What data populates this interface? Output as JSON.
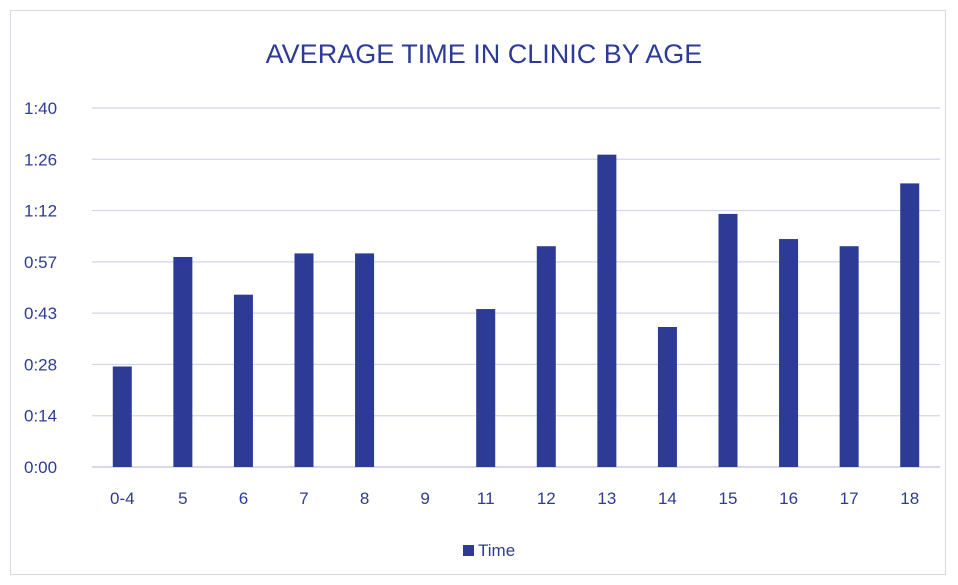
{
  "chart_data": {
    "type": "bar",
    "title": "AVERAGE TIME IN CLINIC BY AGE",
    "xlabel": "",
    "ylabel": "",
    "categories": [
      "0-4",
      "5",
      "6",
      "7",
      "8",
      "9",
      "11",
      "12",
      "13",
      "14",
      "15",
      "16",
      "17",
      "18"
    ],
    "series": [
      {
        "name": "Time",
        "values_minutes": [
          28,
          58.5,
          48,
          59.5,
          59.5,
          0,
          44,
          61.5,
          87,
          39,
          70.5,
          63.5,
          61.5,
          79
        ],
        "color": "#2e3b96"
      }
    ],
    "y_ticks": [
      "0:00",
      "0:14",
      "0:28",
      "0:43",
      "0:57",
      "1:12",
      "1:26",
      "1:40"
    ],
    "ylim_minutes": [
      0,
      100
    ],
    "grid": true,
    "legend": "bottom"
  }
}
